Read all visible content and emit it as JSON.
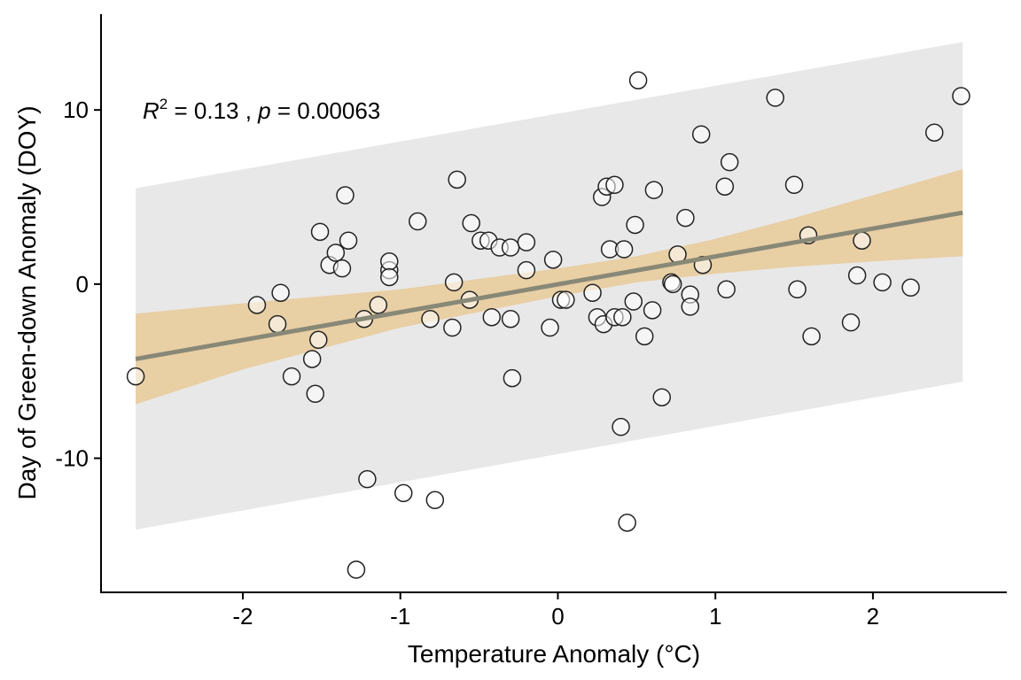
{
  "chart_data": {
    "type": "scatter",
    "xlabel": "Temperature Anomaly (°C)",
    "ylabel": "Day of Green-down Anomaly (DOY)",
    "xlim": [
      -2.9,
      2.85
    ],
    "ylim": [
      -17.7,
      15.5
    ],
    "x_ticks": [
      -2,
      -1,
      0,
      1,
      2
    ],
    "y_ticks": [
      -10,
      0,
      10
    ],
    "x_tick_labels": [
      "-2",
      "-1",
      "0",
      "1",
      "2"
    ],
    "y_tick_labels": [
      "-10",
      "0",
      "10"
    ],
    "annotation": {
      "r2_label": "R",
      "r2_sup": "2",
      "r2_value": " = 0.13 , ",
      "p_label": "p",
      "p_value": " = 0.00063"
    },
    "regression": {
      "x_start": -2.68,
      "y_start": -4.3,
      "x_end": 2.57,
      "y_end": 4.1,
      "line_color": "#888877"
    },
    "confidence_band": {
      "x": [
        -2.68,
        -2.0,
        -1.0,
        0.0,
        0.5,
        1.0,
        1.5,
        2.0,
        2.57
      ],
      "lower": [
        -6.9,
        -4.9,
        -2.5,
        -0.7,
        0.1,
        0.6,
        1.0,
        1.3,
        1.6
      ],
      "upper": [
        -1.7,
        -1.1,
        -0.3,
        0.9,
        1.6,
        2.6,
        3.8,
        5.1,
        6.6
      ],
      "color": "#e8cfa4"
    },
    "prediction_band": {
      "x": [
        -2.68,
        2.57
      ],
      "lower": [
        -14.1,
        -5.6
      ],
      "upper": [
        5.5,
        13.9
      ],
      "color": "#e8e8e8"
    },
    "points": [
      {
        "x": -2.68,
        "y": -5.3
      },
      {
        "x": -1.91,
        "y": -1.2
      },
      {
        "x": -1.78,
        "y": -2.3
      },
      {
        "x": -1.76,
        "y": -0.5
      },
      {
        "x": -1.69,
        "y": -5.3
      },
      {
        "x": -1.56,
        "y": -4.3
      },
      {
        "x": -1.54,
        "y": -6.3
      },
      {
        "x": -1.52,
        "y": -3.2
      },
      {
        "x": -1.51,
        "y": 3.0
      },
      {
        "x": -1.45,
        "y": 1.1
      },
      {
        "x": -1.41,
        "y": 1.8
      },
      {
        "x": -1.37,
        "y": 0.9
      },
      {
        "x": -1.35,
        "y": 5.1
      },
      {
        "x": -1.33,
        "y": 2.5
      },
      {
        "x": -1.28,
        "y": -16.4
      },
      {
        "x": -1.23,
        "y": -2.0
      },
      {
        "x": -1.21,
        "y": -11.2
      },
      {
        "x": -1.14,
        "y": -1.2
      },
      {
        "x": -1.07,
        "y": 0.8
      },
      {
        "x": -1.07,
        "y": 1.3
      },
      {
        "x": -1.07,
        "y": 0.4
      },
      {
        "x": -0.98,
        "y": -12.0
      },
      {
        "x": -0.89,
        "y": 3.6
      },
      {
        "x": -0.81,
        "y": -2.0
      },
      {
        "x": -0.78,
        "y": -12.4
      },
      {
        "x": -0.67,
        "y": -2.5
      },
      {
        "x": -0.66,
        "y": 0.1
      },
      {
        "x": -0.64,
        "y": 6.0
      },
      {
        "x": -0.56,
        "y": -0.9
      },
      {
        "x": -0.55,
        "y": 3.5
      },
      {
        "x": -0.49,
        "y": 2.5
      },
      {
        "x": -0.44,
        "y": 2.5
      },
      {
        "x": -0.42,
        "y": -1.9
      },
      {
        "x": -0.37,
        "y": 2.1
      },
      {
        "x": -0.3,
        "y": 2.1
      },
      {
        "x": -0.3,
        "y": -2.0
      },
      {
        "x": -0.29,
        "y": -5.4
      },
      {
        "x": -0.2,
        "y": 2.4
      },
      {
        "x": -0.2,
        "y": 0.8
      },
      {
        "x": -0.05,
        "y": -2.5
      },
      {
        "x": -0.03,
        "y": 1.4
      },
      {
        "x": 0.02,
        "y": -0.9
      },
      {
        "x": 0.05,
        "y": -0.9
      },
      {
        "x": 0.22,
        "y": -0.5
      },
      {
        "x": 0.25,
        "y": -1.9
      },
      {
        "x": 0.28,
        "y": 5.0
      },
      {
        "x": 0.29,
        "y": -2.3
      },
      {
        "x": 0.31,
        "y": 5.6
      },
      {
        "x": 0.33,
        "y": 2.0
      },
      {
        "x": 0.36,
        "y": 5.7
      },
      {
        "x": 0.36,
        "y": -1.9
      },
      {
        "x": 0.4,
        "y": -8.2
      },
      {
        "x": 0.41,
        "y": -1.9
      },
      {
        "x": 0.42,
        "y": 2.0
      },
      {
        "x": 0.44,
        "y": -13.7
      },
      {
        "x": 0.48,
        "y": -1.0
      },
      {
        "x": 0.49,
        "y": 3.4
      },
      {
        "x": 0.51,
        "y": 11.7
      },
      {
        "x": 0.55,
        "y": -3.0
      },
      {
        "x": 0.6,
        "y": -1.5
      },
      {
        "x": 0.61,
        "y": 5.4
      },
      {
        "x": 0.66,
        "y": -6.5
      },
      {
        "x": 0.72,
        "y": 0.1
      },
      {
        "x": 0.73,
        "y": 0.0
      },
      {
        "x": 0.76,
        "y": 1.7
      },
      {
        "x": 0.81,
        "y": 3.8
      },
      {
        "x": 0.84,
        "y": -0.6
      },
      {
        "x": 0.84,
        "y": -1.3
      },
      {
        "x": 0.91,
        "y": 8.6
      },
      {
        "x": 0.92,
        "y": 1.1
      },
      {
        "x": 1.06,
        "y": 5.6
      },
      {
        "x": 1.07,
        "y": -0.3
      },
      {
        "x": 1.09,
        "y": 7.0
      },
      {
        "x": 1.38,
        "y": 10.7
      },
      {
        "x": 1.5,
        "y": 5.7
      },
      {
        "x": 1.52,
        "y": -0.3
      },
      {
        "x": 1.59,
        "y": 2.8
      },
      {
        "x": 1.61,
        "y": -3.0
      },
      {
        "x": 1.86,
        "y": -2.2
      },
      {
        "x": 1.9,
        "y": 0.5
      },
      {
        "x": 1.93,
        "y": 2.5
      },
      {
        "x": 2.06,
        "y": 0.1
      },
      {
        "x": 2.24,
        "y": -0.2
      },
      {
        "x": 2.39,
        "y": 8.7
      },
      {
        "x": 2.56,
        "y": 10.8
      }
    ]
  }
}
